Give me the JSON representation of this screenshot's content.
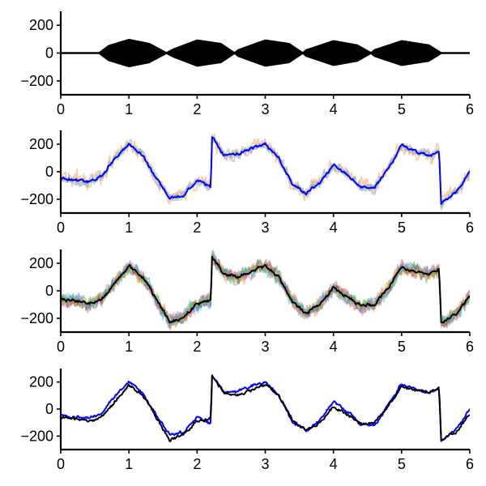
{
  "chart_data": [
    {
      "type": "line",
      "xlim": [
        0,
        6
      ],
      "ylim": [
        -300,
        300
      ],
      "x_ticks": [
        "0",
        "1",
        "2",
        "3",
        "4",
        "5",
        "6"
      ],
      "y_ticks": [
        "200",
        "0",
        "−200"
      ],
      "grid": false,
      "series": [
        {
          "color": "#000000",
          "style": "filled-envelope",
          "x": [
            0.0,
            0.55,
            0.7,
            1.0,
            1.3,
            1.55,
            1.65,
            2.0,
            2.35,
            2.55,
            2.6,
            3.0,
            3.35,
            3.55,
            3.6,
            4.0,
            4.35,
            4.55,
            4.6,
            5.0,
            5.4,
            5.58,
            5.62,
            6.0
          ],
          "y_upper": [
            0,
            0,
            55,
            100,
            70,
            5,
            30,
            95,
            70,
            5,
            25,
            95,
            70,
            5,
            25,
            90,
            60,
            5,
            25,
            90,
            60,
            5,
            0,
            0
          ],
          "y_lower": [
            0,
            0,
            -55,
            -100,
            -70,
            -5,
            -30,
            -95,
            -70,
            -5,
            -25,
            -95,
            -70,
            -5,
            -25,
            -90,
            -60,
            -5,
            -25,
            -90,
            -60,
            -5,
            0,
            0
          ]
        }
      ]
    },
    {
      "type": "line",
      "xlim": [
        0,
        6
      ],
      "ylim": [
        -300,
        300
      ],
      "x_ticks": [
        "0",
        "1",
        "2",
        "3",
        "4",
        "5",
        "6"
      ],
      "y_ticks": [
        "200",
        "0",
        "−200"
      ],
      "grid": false,
      "series": [
        {
          "color": "#f4a460",
          "opacity": 0.55,
          "noise": 90
        },
        {
          "color": "#7fb3d5",
          "opacity": 0.55,
          "noise": 55
        },
        {
          "color": "#82c785",
          "opacity": 0.55,
          "noise": 45
        },
        {
          "color": "#c39bd3",
          "opacity": 0.5,
          "noise": 40
        },
        {
          "color": "#0000ff",
          "opacity": 1.0,
          "noise": 15,
          "is_mean": true
        }
      ],
      "x": [
        0.0,
        0.2,
        0.4,
        0.6,
        0.8,
        1.0,
        1.2,
        1.4,
        1.6,
        1.8,
        2.0,
        2.2,
        2.22,
        2.4,
        2.6,
        2.8,
        3.0,
        3.2,
        3.4,
        3.6,
        3.8,
        4.0,
        4.2,
        4.4,
        4.6,
        4.8,
        5.0,
        5.2,
        5.4,
        5.55,
        5.58,
        5.8,
        6.0
      ],
      "mean": [
        -40,
        -60,
        -70,
        -30,
        100,
        200,
        120,
        -50,
        -190,
        -170,
        -60,
        -110,
        250,
        120,
        130,
        170,
        200,
        100,
        -90,
        -160,
        -80,
        50,
        -20,
        -110,
        -120,
        20,
        190,
        150,
        120,
        150,
        -230,
        -150,
        0
      ]
    },
    {
      "type": "line",
      "xlim": [
        0,
        6
      ],
      "ylim": [
        -300,
        300
      ],
      "x_ticks": [
        "0",
        "1",
        "2",
        "3",
        "4",
        "5",
        "6"
      ],
      "y_ticks": [
        "200",
        "0",
        "−200"
      ],
      "grid": false,
      "series": [
        {
          "color": "#1f77b4",
          "opacity": 0.4,
          "noise": 70
        },
        {
          "color": "#ff7f0e",
          "opacity": 0.4,
          "noise": 70
        },
        {
          "color": "#2ca02c",
          "opacity": 0.4,
          "noise": 70
        },
        {
          "color": "#d62728",
          "opacity": 0.4,
          "noise": 70
        },
        {
          "color": "#9467bd",
          "opacity": 0.4,
          "noise": 70
        },
        {
          "color": "#8c564b",
          "opacity": 0.4,
          "noise": 70
        },
        {
          "color": "#e377c2",
          "opacity": 0.4,
          "noise": 70
        },
        {
          "color": "#bcbd22",
          "opacity": 0.4,
          "noise": 70
        },
        {
          "color": "#17becf",
          "opacity": 0.4,
          "noise": 70
        },
        {
          "color": "#000000",
          "opacity": 1.0,
          "noise": 18,
          "is_mean": true
        }
      ],
      "x": [
        0.0,
        0.2,
        0.4,
        0.6,
        0.8,
        1.0,
        1.2,
        1.4,
        1.6,
        1.8,
        2.0,
        2.2,
        2.22,
        2.4,
        2.6,
        2.8,
        3.0,
        3.2,
        3.4,
        3.6,
        3.8,
        4.0,
        4.2,
        4.4,
        4.6,
        4.8,
        5.0,
        5.2,
        5.4,
        5.55,
        5.58,
        5.8,
        6.0
      ],
      "mean": [
        -60,
        -70,
        -90,
        -60,
        60,
        180,
        100,
        -60,
        -230,
        -190,
        -90,
        -70,
        250,
        120,
        100,
        140,
        180,
        100,
        -80,
        -160,
        -100,
        20,
        -40,
        -110,
        -100,
        20,
        170,
        140,
        120,
        160,
        -230,
        -170,
        -40
      ]
    },
    {
      "type": "line",
      "xlim": [
        0,
        6
      ],
      "ylim": [
        -300,
        300
      ],
      "x_ticks": [
        "0",
        "1",
        "2",
        "3",
        "4",
        "5",
        "6"
      ],
      "y_ticks": [
        "200",
        "0",
        "−200"
      ],
      "grid": false,
      "series": [
        {
          "color": "#0000ff",
          "x": [
            0.0,
            0.2,
            0.4,
            0.6,
            0.8,
            1.0,
            1.2,
            1.4,
            1.6,
            1.8,
            2.0,
            2.2,
            2.22,
            2.4,
            2.6,
            2.8,
            3.0,
            3.2,
            3.4,
            3.6,
            3.8,
            4.0,
            4.2,
            4.4,
            4.6,
            4.8,
            5.0,
            5.2,
            5.4,
            5.55,
            5.58,
            5.8,
            6.0
          ],
          "y": [
            -40,
            -60,
            -70,
            -30,
            100,
            200,
            120,
            -50,
            -190,
            -170,
            -60,
            -110,
            250,
            120,
            130,
            170,
            200,
            100,
            -90,
            -160,
            -80,
            50,
            -20,
            -110,
            -120,
            20,
            190,
            150,
            120,
            150,
            -230,
            -150,
            0
          ]
        },
        {
          "color": "#000000",
          "x": [
            0.0,
            0.2,
            0.4,
            0.6,
            0.8,
            1.0,
            1.2,
            1.4,
            1.6,
            1.8,
            2.0,
            2.2,
            2.22,
            2.4,
            2.6,
            2.8,
            3.0,
            3.2,
            3.4,
            3.6,
            3.8,
            4.0,
            4.2,
            4.4,
            4.6,
            4.8,
            5.0,
            5.2,
            5.4,
            5.55,
            5.58,
            5.8,
            6.0
          ],
          "y": [
            -60,
            -70,
            -90,
            -60,
            60,
            180,
            100,
            -60,
            -230,
            -190,
            -90,
            -70,
            250,
            120,
            100,
            140,
            180,
            100,
            -80,
            -160,
            -100,
            20,
            -40,
            -110,
            -100,
            20,
            170,
            140,
            120,
            160,
            -230,
            -170,
            -40
          ]
        }
      ]
    }
  ]
}
